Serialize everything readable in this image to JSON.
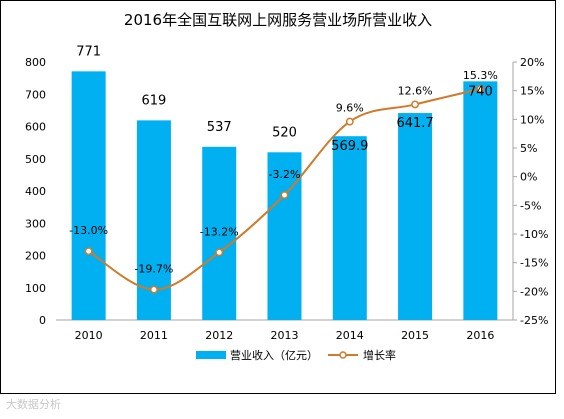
{
  "chart_data": {
    "type": "bar",
    "title": "2016年全国互联网上网服务营业场所营业收入",
    "categories": [
      "2010",
      "2011",
      "2012",
      "2013",
      "2014",
      "2015",
      "2016"
    ],
    "series": [
      {
        "name": "营业收入（亿元）",
        "type": "bar",
        "axis": "left",
        "values": [
          771,
          619,
          537,
          520,
          569.9,
          641.7,
          740
        ],
        "labels": [
          "771",
          "619",
          "537",
          "520",
          "569.9",
          "641.7",
          "740"
        ]
      },
      {
        "name": "增长率",
        "type": "line",
        "axis": "right",
        "values": [
          -13.0,
          -19.7,
          -13.2,
          -3.2,
          9.6,
          12.6,
          15.3
        ],
        "labels": [
          "-13.0%",
          "-19.7%",
          "-13.2%",
          "-3.2%",
          "9.6%",
          "12.6%",
          "15.3%"
        ]
      }
    ],
    "y_left": {
      "min": 0,
      "max": 800,
      "step": 100,
      "ticks": [
        "0",
        "100",
        "200",
        "300",
        "400",
        "500",
        "600",
        "700",
        "800"
      ]
    },
    "y_right": {
      "min": -25,
      "max": 20,
      "step": 5,
      "ticks": [
        "-25%",
        "-20%",
        "-15%",
        "-10%",
        "-5%",
        "0%",
        "5%",
        "10%",
        "15%",
        "20%"
      ]
    },
    "legend_placement": "bottom",
    "grid": false,
    "colors": {
      "bar": "#00b0f0",
      "line": "#d07a2a"
    }
  },
  "watermark": "大数据分析"
}
